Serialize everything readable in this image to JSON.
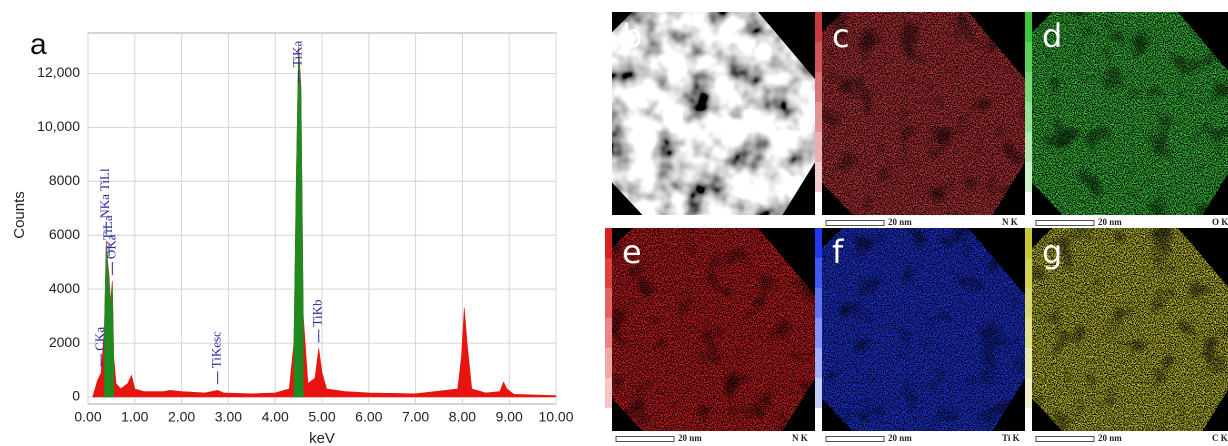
{
  "chart_data": {
    "type": "area",
    "panel_label": "a",
    "x_label": "keV",
    "y_label": "Counts",
    "x": [
      0.1,
      0.15,
      0.2,
      0.28,
      0.35,
      0.39,
      0.42,
      0.45,
      0.48,
      0.52,
      0.55,
      0.6,
      0.7,
      0.85,
      0.93,
      1.0,
      1.2,
      1.6,
      1.75,
      2.0,
      2.5,
      2.77,
      2.9,
      3.5,
      4.0,
      4.3,
      4.4,
      4.45,
      4.5,
      4.55,
      4.6,
      4.7,
      4.85,
      4.93,
      5.0,
      5.1,
      5.5,
      6.0,
      7.0,
      7.9,
      7.98,
      8.04,
      8.1,
      8.2,
      8.5,
      8.8,
      8.88,
      8.95,
      9.1,
      10.0
    ],
    "series": [
      {
        "color": "#e8140f",
        "values": [
          0,
          300,
          600,
          900,
          2500,
          5800,
          5000,
          4500,
          3500,
          4300,
          1500,
          500,
          300,
          500,
          800,
          300,
          200,
          200,
          250,
          200,
          150,
          250,
          150,
          120,
          150,
          300,
          2000,
          8000,
          13000,
          11500,
          3000,
          500,
          700,
          1800,
          900,
          300,
          200,
          150,
          120,
          300,
          1500,
          3300,
          2000,
          300,
          150,
          200,
          550,
          300,
          100,
          50
        ]
      },
      {
        "color": "#1f8a1f",
        "values": [
          null,
          null,
          null,
          null,
          2300,
          5600,
          4800,
          4300,
          3300,
          4100,
          1300,
          null,
          null,
          null,
          null,
          null,
          null,
          null,
          null,
          null,
          null,
          null,
          null,
          null,
          null,
          null,
          1800,
          7800,
          12800,
          11300,
          2800,
          null,
          null,
          null,
          null,
          null,
          null,
          null,
          null,
          null,
          null,
          null,
          null,
          null,
          null,
          null,
          null,
          null,
          null,
          null
        ]
      }
    ],
    "xlim": [
      0,
      10
    ],
    "ylim": [
      0,
      13500
    ],
    "xticks": [
      {
        "value": 0,
        "label": "0.00"
      },
      {
        "value": 1,
        "label": "1.00"
      },
      {
        "value": 2,
        "label": "2.00"
      },
      {
        "value": 3,
        "label": "3.00"
      },
      {
        "value": 4,
        "label": "4.00"
      },
      {
        "value": 5,
        "label": "5.00"
      },
      {
        "value": 6,
        "label": "6.00"
      },
      {
        "value": 7,
        "label": "7.00"
      },
      {
        "value": 8,
        "label": "8.00"
      },
      {
        "value": 9,
        "label": "9.00"
      },
      {
        "value": 10,
        "label": "10.00"
      }
    ],
    "yticks": [
      0,
      2000,
      4000,
      6000,
      8000,
      {
        "value": 10000,
        "label": "10,000"
      },
      {
        "value": 12000,
        "label": "12,000"
      }
    ],
    "grid": true,
    "annotations": [
      {
        "text": "CKa",
        "x": 0.28
      },
      {
        "text": "NKa TiLl",
        "x": 0.39
      },
      {
        "text": "TiLa",
        "x": 0.45
      },
      {
        "text": "OKa",
        "x": 0.52
      },
      {
        "text": "TiKesc",
        "x": 2.77
      },
      {
        "text": "TiKa",
        "x": 4.5
      },
      {
        "text": "TiKb",
        "x": 4.93
      }
    ]
  },
  "panels": [
    {
      "label": "b"
    },
    {
      "label": "c",
      "color": "#c8383c",
      "scale_bar": "20 nm",
      "element": "N K"
    },
    {
      "label": "d",
      "color": "#3cc83c",
      "scale_bar": "20 nm",
      "element": "O K"
    },
    {
      "label": "e",
      "color": "#d82020",
      "scale_bar": "20 nm",
      "element": "N K"
    },
    {
      "label": "f",
      "color": "#2038f0",
      "scale_bar": "20 nm",
      "element": "Ti K"
    },
    {
      "label": "g",
      "color": "#c8c832",
      "scale_bar": "20 nm",
      "element": "C K"
    }
  ]
}
